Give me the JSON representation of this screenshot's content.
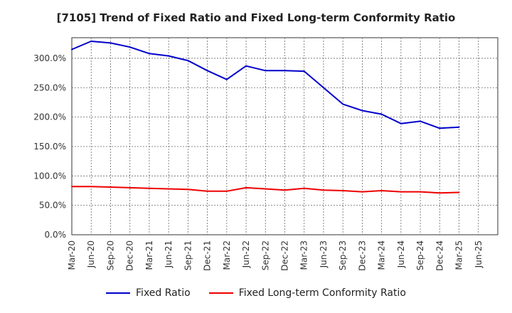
{
  "chart_data": {
    "type": "line",
    "title": "[7105]  Trend of Fixed Ratio and Fixed Long-term Conformity Ratio",
    "x_tick_labels": [
      "Mar-20",
      "Jun-20",
      "Sep-20",
      "Dec-20",
      "Mar-21",
      "Jun-21",
      "Sep-21",
      "Dec-21",
      "Mar-22",
      "Jun-22",
      "Sep-22",
      "Dec-22",
      "Mar-23",
      "Jun-23",
      "Sep-23",
      "Dec-23",
      "Mar-24",
      "Jun-24",
      "Sep-24",
      "Dec-24",
      "Mar-25",
      "Jun-25"
    ],
    "categories": [
      "Mar-20",
      "Jun-20",
      "Sep-20",
      "Dec-20",
      "Mar-21",
      "Jun-21",
      "Sep-21",
      "Dec-21",
      "Mar-22",
      "Jun-22",
      "Sep-22",
      "Dec-22",
      "Mar-23",
      "Jun-23",
      "Sep-23",
      "Dec-23",
      "Mar-24",
      "Jun-24",
      "Sep-24",
      "Dec-24",
      "Mar-25"
    ],
    "y_tick_labels": [
      "0.0%",
      "50.0%",
      "100.0%",
      "150.0%",
      "200.0%",
      "250.0%",
      "300.0%"
    ],
    "ylim": [
      0,
      335
    ],
    "grid": true,
    "legend_position": "bottom",
    "series": [
      {
        "name": "Fixed Ratio",
        "color": "#0000cc",
        "values": [
          315,
          329,
          326,
          319,
          308,
          304,
          296,
          279,
          264,
          287,
          279,
          279,
          278,
          250,
          222,
          211,
          205,
          189,
          193,
          181,
          183
        ]
      },
      {
        "name": "Fixed Long-term Conformity Ratio",
        "color": "#ee0000",
        "values": [
          82,
          82,
          81,
          80,
          79,
          78,
          77,
          74,
          74,
          80,
          78,
          76,
          79,
          76,
          75,
          73,
          75,
          73,
          73,
          71,
          72
        ]
      }
    ]
  }
}
